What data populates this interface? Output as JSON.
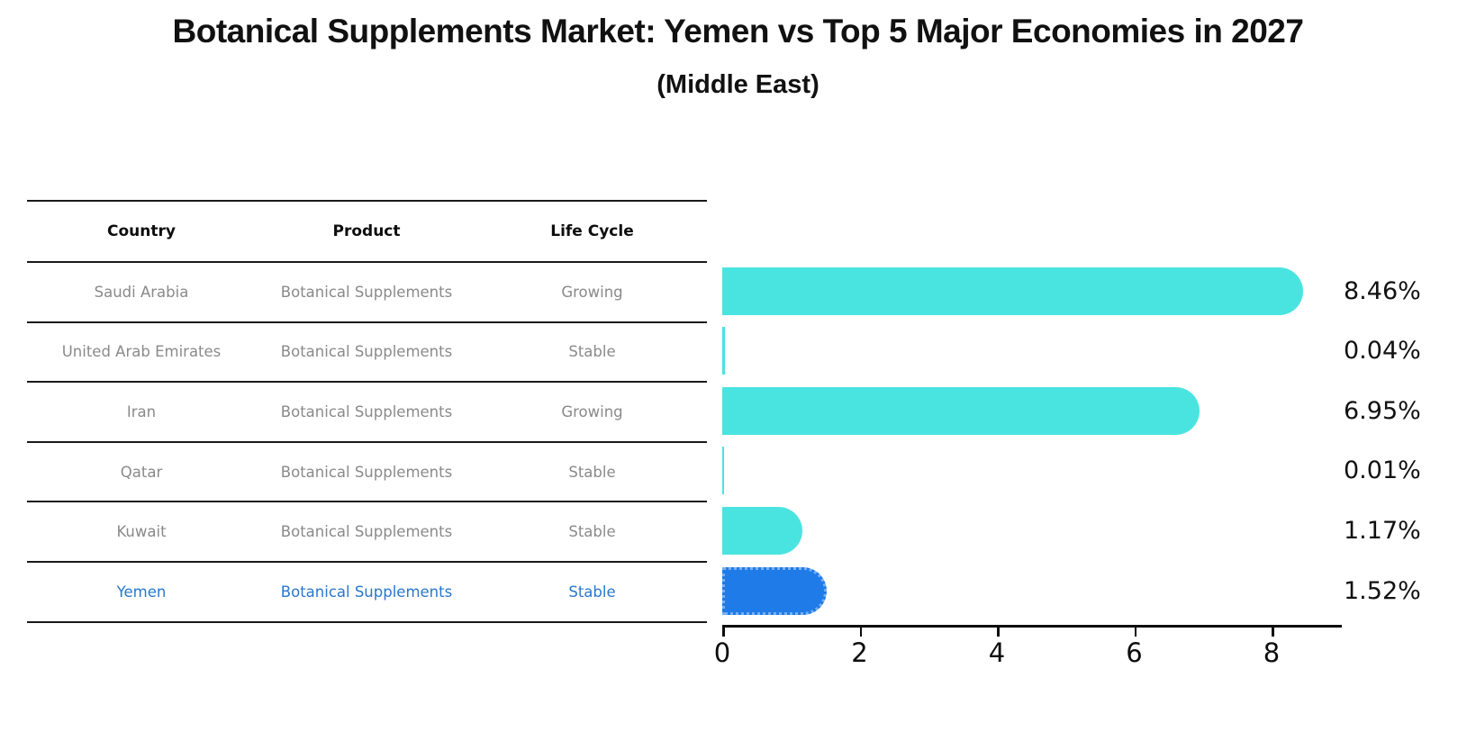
{
  "header": {
    "title": "Botanical Supplements Market: Yemen vs Top 5 Major Economies in 2027",
    "subtitle": "(Middle East)"
  },
  "table": {
    "columns": [
      "Country",
      "Product",
      "Life Cycle"
    ],
    "rows": [
      {
        "country": "Saudi Arabia",
        "product": "Botanical Supplements",
        "life_cycle": "Growing",
        "highlight": false
      },
      {
        "country": "United Arab Emirates",
        "product": "Botanical Supplements",
        "life_cycle": "Stable",
        "highlight": false
      },
      {
        "country": "Iran",
        "product": "Botanical Supplements",
        "life_cycle": "Growing",
        "highlight": false
      },
      {
        "country": "Qatar",
        "product": "Botanical Supplements",
        "life_cycle": "Stable",
        "highlight": false
      },
      {
        "country": "Kuwait",
        "product": "Botanical Supplements",
        "life_cycle": "Stable",
        "highlight": false
      },
      {
        "country": "Yemen",
        "product": "Botanical Supplements",
        "life_cycle": "Stable",
        "highlight": true
      }
    ]
  },
  "chart_data": {
    "type": "bar",
    "orientation": "horizontal",
    "title": "Botanical Supplements Market: Yemen vs Top 5 Major Economies in 2027",
    "subtitle": "(Middle East)",
    "categories": [
      "Saudi Arabia",
      "United Arab Emirates",
      "Iran",
      "Qatar",
      "Kuwait",
      "Yemen"
    ],
    "values": [
      8.46,
      0.04,
      6.95,
      0.01,
      1.17,
      1.52
    ],
    "value_labels": [
      "8.46%",
      "0.04%",
      "6.95%",
      "0.01%",
      "1.17%",
      "1.52%"
    ],
    "x_ticks": [
      0,
      2,
      4,
      6,
      8
    ],
    "xlim": [
      0,
      9.02
    ],
    "xlabel": "",
    "ylabel": "",
    "grid": false,
    "legend": false,
    "bar_color": "#4ae4e0",
    "highlight_color": "#1f7be8",
    "highlight_index": 5
  },
  "colors": {
    "row_text": "#8a8a8a",
    "header_text": "#0d0d0d",
    "highlight_text": "#2878cd",
    "axis": "#0d0d0d"
  }
}
